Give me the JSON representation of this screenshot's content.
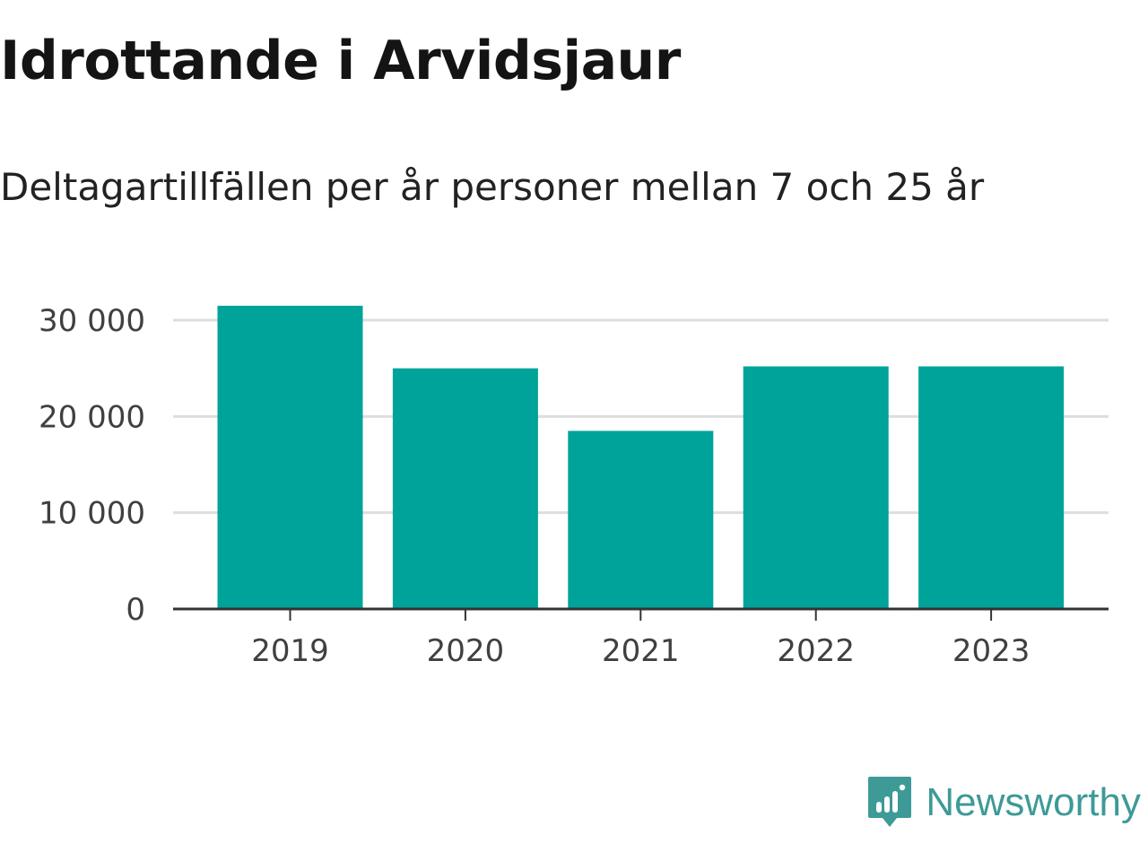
{
  "chart_data": {
    "type": "bar",
    "title": "Idrottande i Arvidsjaur",
    "subtitle": "Deltagartillfällen per år personer mellan 7 och 25 år",
    "categories": [
      "2019",
      "2020",
      "2021",
      "2022",
      "2023"
    ],
    "values": [
      31500,
      25000,
      18500,
      25200,
      25200
    ],
    "yticks": [
      0,
      10000,
      20000,
      30000
    ],
    "ytick_labels": [
      "0",
      "10 000",
      "20 000",
      "30 000"
    ],
    "ylim": [
      0,
      30000
    ],
    "grid": true,
    "bar_color": "#00a39a"
  },
  "brand": {
    "name": "Newsworthy",
    "color": "#3d9a97"
  }
}
